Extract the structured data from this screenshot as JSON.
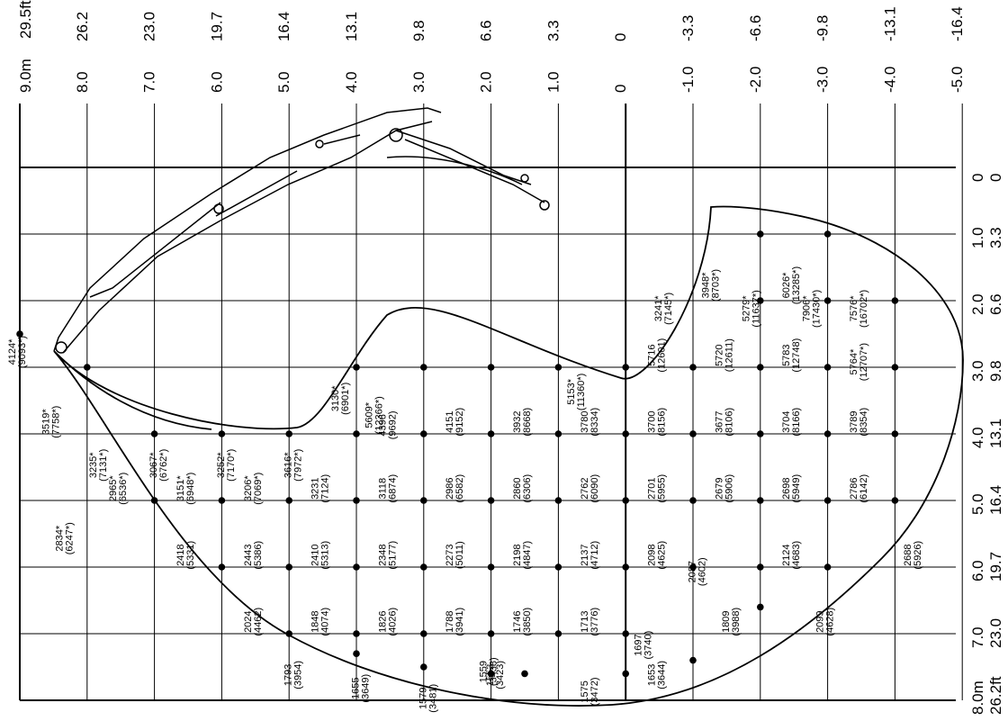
{
  "top_scale": [
    {
      "m": "9.0m",
      "ft": "29.5ft"
    },
    {
      "m": "8.0",
      "ft": "26.2"
    },
    {
      "m": "7.0",
      "ft": "23.0"
    },
    {
      "m": "6.0",
      "ft": "19.7"
    },
    {
      "m": "5.0",
      "ft": "16.4"
    },
    {
      "m": "4.0",
      "ft": "13.1"
    },
    {
      "m": "3.0",
      "ft": "9.8"
    },
    {
      "m": "2.0",
      "ft": "6.6"
    },
    {
      "m": "1.0",
      "ft": "3.3"
    },
    {
      "m": "0",
      "ft": "0"
    },
    {
      "m": "-1.0",
      "ft": "-3.3"
    },
    {
      "m": "-2.0",
      "ft": "-6.6"
    },
    {
      "m": "-3.0",
      "ft": "-9.8"
    },
    {
      "m": "-4.0",
      "ft": "-13.1"
    },
    {
      "m": "-5.0",
      "ft": "-16.4"
    }
  ],
  "right_scale": [
    {
      "m": "0",
      "ft": "0"
    },
    {
      "m": "1.0",
      "ft": "3.3"
    },
    {
      "m": "2.0",
      "ft": "6.6"
    },
    {
      "m": "3.0",
      "ft": "9.8"
    },
    {
      "m": "4.0",
      "ft": "13.1"
    },
    {
      "m": "5.0",
      "ft": "16.4"
    },
    {
      "m": "6.0",
      "ft": "19.7"
    },
    {
      "m": "7.0",
      "ft": "23.0"
    },
    {
      "m": "8.0m",
      "ft": "26.2ft"
    }
  ],
  "capacity_labels": [
    {
      "kg": "4124*",
      "lb": "(9093*)",
      "h": 9.0,
      "r": 2.5
    },
    {
      "kg": "3519*",
      "lb": "(7758*)",
      "h": 8.5,
      "r": 3.55
    },
    {
      "kg": "3235*",
      "lb": "(7131*)",
      "h": 7.8,
      "r": 4.2
    },
    {
      "kg": "2965*",
      "lb": "(6536*)",
      "h": 7.5,
      "r": 4.55
    },
    {
      "kg": "2834*",
      "lb": "(6247*)",
      "h": 8.3,
      "r": 5.3
    },
    {
      "kg": "3067*",
      "lb": "(6762*)",
      "h": 6.9,
      "r": 4.2
    },
    {
      "kg": "3151*",
      "lb": "(6948*)",
      "h": 6.5,
      "r": 4.55
    },
    {
      "kg": "2418",
      "lb": "(5331)",
      "h": 6.5,
      "r": 5.55
    },
    {
      "kg": "3252*",
      "lb": "(7170*)",
      "h": 5.9,
      "r": 4.2
    },
    {
      "kg": "3206*",
      "lb": "(7069*)",
      "h": 5.5,
      "r": 4.55
    },
    {
      "kg": "2443",
      "lb": "(5386)",
      "h": 5.5,
      "r": 5.55
    },
    {
      "kg": "2024",
      "lb": "(4462)",
      "h": 5.5,
      "r": 6.55
    },
    {
      "kg": "3616*",
      "lb": "(7972*)",
      "h": 4.9,
      "r": 4.2
    },
    {
      "kg": "3231",
      "lb": "(7124)",
      "h": 4.5,
      "r": 4.55
    },
    {
      "kg": "2410",
      "lb": "(5313)",
      "h": 4.5,
      "r": 5.55
    },
    {
      "kg": "1848",
      "lb": "(4074)",
      "h": 4.5,
      "r": 6.55
    },
    {
      "kg": "1793",
      "lb": "(3954)",
      "h": 4.9,
      "r": 7.35
    },
    {
      "kg": "3130*",
      "lb": "(6901*)",
      "h": 4.2,
      "r": 3.2
    },
    {
      "kg": "5609*",
      "lb": "(12366*)",
      "h": 3.7,
      "r": 3.45
    },
    {
      "kg": "4396",
      "lb": "(9692)",
      "h": 3.5,
      "r": 3.6
    },
    {
      "kg": "3118",
      "lb": "(6874)",
      "h": 3.5,
      "r": 4.55
    },
    {
      "kg": "2348",
      "lb": "(5177)",
      "h": 3.5,
      "r": 5.55
    },
    {
      "kg": "1826",
      "lb": "(4026)",
      "h": 3.5,
      "r": 6.55
    },
    {
      "kg": "1655",
      "lb": "(3649)",
      "h": 3.9,
      "r": 7.55
    },
    {
      "kg": "4151",
      "lb": "(9152)",
      "h": 2.5,
      "r": 3.55
    },
    {
      "kg": "2986",
      "lb": "(6582)",
      "h": 2.5,
      "r": 4.55
    },
    {
      "kg": "2273",
      "lb": "(5011)",
      "h": 2.5,
      "r": 5.55
    },
    {
      "kg": "1788",
      "lb": "(3941)",
      "h": 2.5,
      "r": 6.55
    },
    {
      "kg": "1579",
      "lb": "(3481)",
      "h": 2.9,
      "r": 7.7
    },
    {
      "kg": "1559",
      "lb": "(3438)",
      "h": 2.0,
      "r": 7.3
    },
    {
      "kg": "3932",
      "lb": "(8668)",
      "h": 1.5,
      "r": 3.55
    },
    {
      "kg": "2860",
      "lb": "(6306)",
      "h": 1.5,
      "r": 4.55
    },
    {
      "kg": "2198",
      "lb": "(4847)",
      "h": 1.5,
      "r": 5.55
    },
    {
      "kg": "1746",
      "lb": "(3850)",
      "h": 1.5,
      "r": 6.55
    },
    {
      "kg": "1553",
      "lb": "(3423)",
      "h": 1.9,
      "r": 7.35
    },
    {
      "kg": "5153*",
      "lb": "(11360*)",
      "h": 0.7,
      "r": 3.1
    },
    {
      "kg": "3780",
      "lb": "(8334)",
      "h": 0.5,
      "r": 3.55
    },
    {
      "kg": "2762",
      "lb": "(6090)",
      "h": 0.5,
      "r": 4.55
    },
    {
      "kg": "2137",
      "lb": "(4712)",
      "h": 0.5,
      "r": 5.55
    },
    {
      "kg": "1713",
      "lb": "(3776)",
      "h": 0.5,
      "r": 6.55
    },
    {
      "kg": "1575",
      "lb": "(3472)",
      "h": 0.5,
      "r": 7.6
    },
    {
      "kg": "1697",
      "lb": "(3740)",
      "h": -0.3,
      "r": 6.9
    },
    {
      "kg": "3241*",
      "lb": "(7145*)",
      "h": -0.6,
      "r": 1.85
    },
    {
      "kg": "3948*",
      "lb": "(8703*)",
      "h": -1.3,
      "r": 1.5
    },
    {
      "kg": "5716",
      "lb": "(12601)",
      "h": -0.5,
      "r": 2.55
    },
    {
      "kg": "3700",
      "lb": "(8156)",
      "h": -0.5,
      "r": 3.55
    },
    {
      "kg": "2701",
      "lb": "(5955)",
      "h": -0.5,
      "r": 4.55
    },
    {
      "kg": "2098",
      "lb": "(4625)",
      "h": -0.5,
      "r": 5.55
    },
    {
      "kg": "1653",
      "lb": "(3644)",
      "h": -0.5,
      "r": 7.35
    },
    {
      "kg": "2087",
      "lb": "(4602)",
      "h": -1.1,
      "r": 5.8
    },
    {
      "kg": "1809",
      "lb": "(3988)",
      "h": -1.6,
      "r": 6.55
    },
    {
      "kg": "5279*",
      "lb": "(11637*)",
      "h": -1.9,
      "r": 1.85
    },
    {
      "kg": "5720",
      "lb": "(12611)",
      "h": -1.5,
      "r": 2.55
    },
    {
      "kg": "3677",
      "lb": "(8106)",
      "h": -1.5,
      "r": 3.55
    },
    {
      "kg": "2679",
      "lb": "(5906)",
      "h": -1.5,
      "r": 4.55
    },
    {
      "kg": "2124",
      "lb": "(4683)",
      "h": -2.5,
      "r": 5.55
    },
    {
      "kg": "6026*",
      "lb": "(13285*)",
      "h": -2.5,
      "r": 1.5
    },
    {
      "kg": "7906*",
      "lb": "(17430*)",
      "h": -2.8,
      "r": 1.85
    },
    {
      "kg": "5783",
      "lb": "(12748)",
      "h": -2.5,
      "r": 2.55
    },
    {
      "kg": "3704",
      "lb": "(8166)",
      "h": -2.5,
      "r": 3.55
    },
    {
      "kg": "2698",
      "lb": "(5949)",
      "h": -2.5,
      "r": 4.55
    },
    {
      "kg": "2099",
      "lb": "(4628)",
      "h": -3.0,
      "r": 6.55
    },
    {
      "kg": "7576*",
      "lb": "(16702*)",
      "h": -3.5,
      "r": 1.85
    },
    {
      "kg": "5764*",
      "lb": "(12707*)",
      "h": -3.5,
      "r": 2.65
    },
    {
      "kg": "3789",
      "lb": "(8354)",
      "h": -3.5,
      "r": 3.55
    },
    {
      "kg": "2786",
      "lb": "(6142)",
      "h": -3.5,
      "r": 4.55
    },
    {
      "kg": "2688",
      "lb": "(5926)",
      "h": -4.3,
      "r": 5.55
    }
  ],
  "nodes": [
    [
      9.0,
      2.5
    ],
    [
      8.0,
      3.0
    ],
    [
      7.0,
      4.0
    ],
    [
      6.0,
      4.0
    ],
    [
      5.0,
      4.0
    ],
    [
      4.0,
      4.0
    ],
    [
      7.0,
      5.0
    ],
    [
      6.0,
      5.0
    ],
    [
      5.0,
      5.0
    ],
    [
      4.0,
      5.0
    ],
    [
      3.0,
      5.0
    ],
    [
      2.0,
      5.0
    ],
    [
      1.0,
      5.0
    ],
    [
      0.0,
      5.0
    ],
    [
      6.0,
      6.0
    ],
    [
      5.0,
      6.0
    ],
    [
      4.0,
      6.0
    ],
    [
      3.0,
      6.0
    ],
    [
      2.0,
      6.0
    ],
    [
      1.0,
      6.0
    ],
    [
      0.0,
      6.0
    ],
    [
      5.0,
      7.0
    ],
    [
      4.0,
      7.0
    ],
    [
      3.0,
      7.0
    ],
    [
      2.0,
      7.0
    ],
    [
      1.0,
      7.0
    ],
    [
      0.0,
      7.0
    ],
    [
      4.0,
      3.0
    ],
    [
      3.0,
      3.0
    ],
    [
      2.0,
      3.0
    ],
    [
      1.0,
      3.0
    ],
    [
      0.0,
      3.0
    ],
    [
      3.0,
      4.0
    ],
    [
      2.0,
      4.0
    ],
    [
      1.0,
      4.0
    ],
    [
      0.0,
      4.0
    ],
    [
      -1.0,
      3.0
    ],
    [
      -1.0,
      4.0
    ],
    [
      -1.0,
      5.0
    ],
    [
      -1.0,
      6.0
    ],
    [
      -2.0,
      1.0
    ],
    [
      -2.0,
      2.0
    ],
    [
      -2.0,
      3.0
    ],
    [
      -2.0,
      4.0
    ],
    [
      -2.0,
      5.0
    ],
    [
      -2.0,
      6.0
    ],
    [
      -2.0,
      6.6
    ],
    [
      -3.0,
      1.0
    ],
    [
      -3.0,
      2.0
    ],
    [
      -3.0,
      3.0
    ],
    [
      -3.0,
      4.0
    ],
    [
      -3.0,
      5.0
    ],
    [
      -3.0,
      6.0
    ],
    [
      -4.0,
      2.0
    ],
    [
      -4.0,
      3.0
    ],
    [
      -4.0,
      4.0
    ],
    [
      -4.0,
      5.0
    ],
    [
      2.0,
      7.6
    ],
    [
      3.0,
      7.5
    ],
    [
      4.0,
      7.3
    ],
    [
      1.5,
      7.6
    ],
    [
      -1.0,
      7.4
    ],
    [
      0.0,
      7.6
    ]
  ]
}
